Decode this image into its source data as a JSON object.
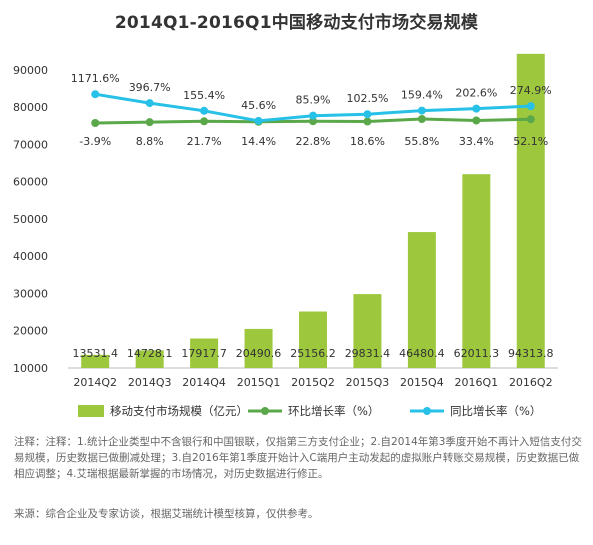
{
  "title": "2014Q1-2016Q1中国移动支付市场交易规模",
  "chart_data": {
    "type": "bar",
    "categories": [
      "2014Q2",
      "2014Q3",
      "2014Q4",
      "2015Q1",
      "2015Q2",
      "2015Q3",
      "2015Q4",
      "2016Q1",
      "2016Q2"
    ],
    "ylim": [
      10000,
      94000
    ],
    "yticks": [
      10000,
      20000,
      30000,
      40000,
      50000,
      60000,
      70000,
      80000,
      90000
    ],
    "legend_position": "bottom",
    "series": [
      {
        "name": "移动支付市场规模（亿元）",
        "type": "bar",
        "color": "#9dc83d",
        "values": [
          13531.4,
          14728.1,
          17917.7,
          20490.6,
          25156.2,
          29831.4,
          46480.4,
          62011.3,
          94313.8
        ],
        "labels": [
          "13531.4",
          "14728.1",
          "17917.7",
          "20490.6",
          "25156.2",
          "29831.4",
          "46480.4",
          "62011.3",
          "94313.8"
        ]
      },
      {
        "name": "环比增长率（%）",
        "type": "line",
        "color": "#5aa84a",
        "values": [
          -3.9,
          8.8,
          21.7,
          14.4,
          22.8,
          18.6,
          55.8,
          33.4,
          52.1
        ],
        "labels": [
          "-3.9%",
          "8.8%",
          "21.7%",
          "14.4%",
          "22.8%",
          "18.6%",
          "55.8%",
          "33.4%",
          "52.1%"
        ]
      },
      {
        "name": "同比增长率（%）",
        "type": "line",
        "color": "#27c0e6",
        "values": [
          1171.6,
          396.7,
          155.4,
          45.6,
          85.9,
          102.5,
          159.4,
          202.6,
          274.9
        ],
        "labels": [
          "1171.6%",
          "396.7%",
          "155.4%",
          "45.6%",
          "85.9%",
          "102.5%",
          "159.4%",
          "202.6%",
          "274.9%"
        ]
      }
    ]
  },
  "notes": {
    "main": "注释：注释：1.统计企业类型中不含银行和中国银联，仅指第三方支付企业；2.自2014年第3季度开始不再计入短信支付交易规模，历史数据已做删减处理；3.自2016年第1季度开始计入C端用户主动发起的虚拟账户转账交易规模，历史数据已做相应调整；4.艾瑞根据最新掌握的市场情况，对历史数据进行修正。",
    "source": "来源：综合企业及专家访谈，根据艾瑞统计模型核算，仅供参考。"
  }
}
